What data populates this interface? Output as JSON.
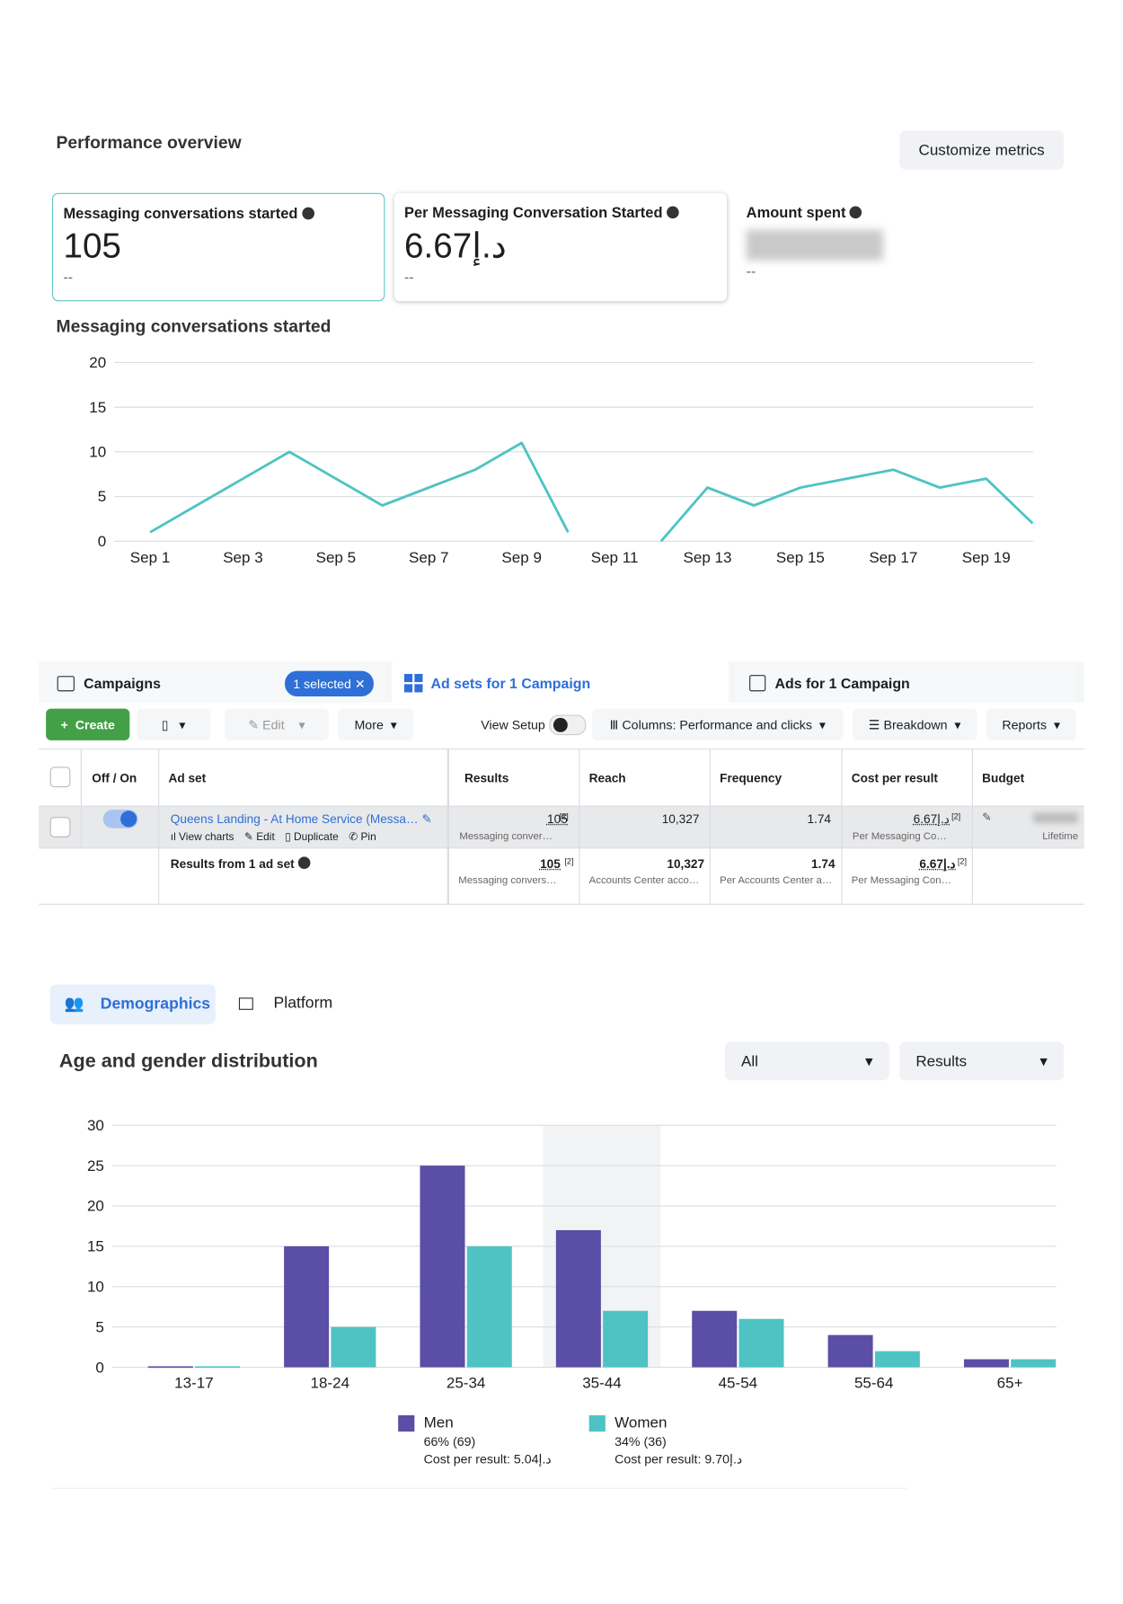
{
  "header": {
    "title": "Performance overview",
    "button": "Customize metrics"
  },
  "metrics": [
    {
      "label": "Messaging conversations started",
      "value": "105",
      "compare": "--"
    },
    {
      "label": "Per Messaging Conversation Started",
      "value": "6.67د.إ",
      "compare": "--"
    },
    {
      "label": "Amount spent",
      "compare": "--"
    }
  ],
  "chart_data": [
    {
      "type": "line",
      "title": "Messaging conversations started",
      "categories": [
        "Sep 1",
        null,
        "Sep 3",
        null,
        "Sep 5",
        null,
        "Sep 7",
        null,
        "Sep 9",
        null,
        "Sep 11",
        null,
        "Sep 13",
        null,
        "Sep 15",
        null,
        "Sep 17",
        null,
        "Sep 19",
        null
      ],
      "series": [
        {
          "name": "Messaging conversations started",
          "color": "#4fc3c3",
          "values": [
            1,
            4,
            7,
            10,
            7,
            4,
            6,
            8,
            11,
            1,
            null,
            0,
            6,
            4,
            6,
            7,
            8,
            6,
            7,
            2
          ]
        }
      ],
      "ylim": [
        0,
        20
      ],
      "yticks": [
        0,
        5,
        10,
        15,
        20
      ],
      "grid": true
    },
    {
      "type": "bar",
      "title": "Age and gender distribution",
      "categories": [
        "13-17",
        "18-24",
        "25-34",
        "35-44",
        "45-54",
        "55-64",
        "65+"
      ],
      "series": [
        {
          "name": "Men",
          "color": "#5b4ea6",
          "values": [
            0,
            15,
            25,
            17,
            7,
            4,
            1
          ],
          "share": "66% (69)",
          "cost": "Cost per result: 5.04د.إ"
        },
        {
          "name": "Women",
          "color": "#4fc3c3",
          "values": [
            0,
            5,
            15,
            7,
            6,
            2,
            1
          ],
          "share": "34% (36)",
          "cost": "Cost per result: 9.70د.إ"
        }
      ],
      "ylim": [
        0,
        30
      ],
      "yticks": [
        0,
        5,
        10,
        15,
        20,
        25,
        30
      ],
      "grid": true,
      "legend": "bottom"
    }
  ],
  "tabs": {
    "campaigns": "Campaigns",
    "selected": "1 selected",
    "adsets": "Ad sets for 1 Campaign",
    "ads": "Ads for 1 Campaign"
  },
  "toolbar": {
    "create": "Create",
    "edit": "Edit",
    "more": "More",
    "view_setup": "View Setup",
    "columns": "Columns: Performance and clicks",
    "breakdown": "Breakdown",
    "reports": "Reports"
  },
  "table": {
    "headers": [
      "Off / On",
      "Ad set",
      "Results",
      "Reach",
      "Frequency",
      "Cost per result",
      "Budget"
    ],
    "rows": [
      {
        "name": "Queens Landing - At Home Service (Messa…",
        "actions": [
          "View charts",
          "Edit",
          "Duplicate",
          "Pin"
        ],
        "results": "105",
        "note": "[2]",
        "results_sub": "Messaging conver…",
        "reach": "10,327",
        "frequency": "1.74",
        "cost": "6.67د.إ",
        "cost_note": "[2]",
        "cost_sub": "Per Messaging Co…",
        "budget_sub": "Lifetime"
      },
      {
        "name": "Results from 1 ad set",
        "results": "105",
        "note": "[2]",
        "results_sub": "Messaging convers…",
        "reach": "10,327",
        "reach_sub": "Accounts Center acco…",
        "frequency": "1.74",
        "frequency_sub": "Per Accounts Center a…",
        "cost": "6.67د.إ",
        "cost_note": "[2]",
        "cost_sub": "Per Messaging Con…"
      }
    ]
  },
  "demographics": {
    "tab": "Demographics",
    "platform": "Platform",
    "filter": "All",
    "metric": "Results"
  }
}
